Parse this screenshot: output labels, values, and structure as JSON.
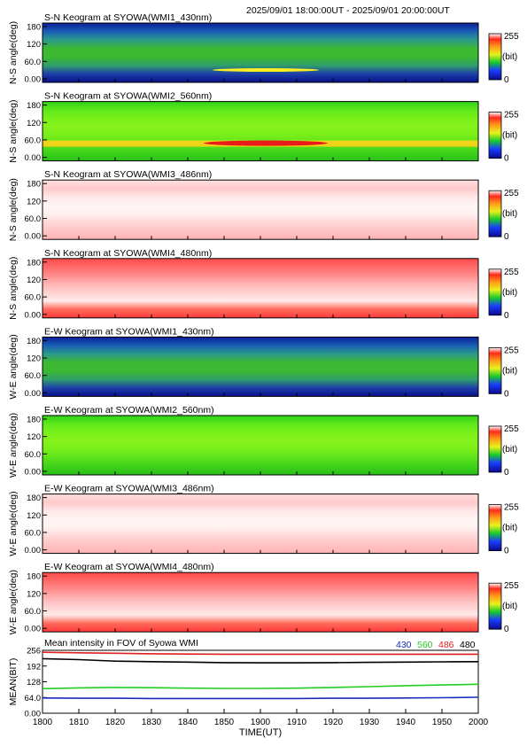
{
  "header": {
    "time_range": "2025/09/01 18:00:00UT - 2025/09/01 20:00:00UT"
  },
  "colorbar": {
    "max_label": "255",
    "unit_label": "(bit)",
    "min_label": "0"
  },
  "gradient_colors": {
    "blue_green": [
      "#0b1f9a",
      "#1a5fb5",
      "#2a9a8a",
      "#3cb832",
      "#3cb832",
      "#2f9f6a",
      "#1e3fa8",
      "#08108a"
    ],
    "green": [
      "#2fd21a",
      "#5fe81a",
      "#7af01a",
      "#86f21a",
      "#78ee1a",
      "#5ae21a",
      "#3fd21a",
      "#28c01a"
    ],
    "pink": [
      "#ffe0e0",
      "#ffcaca",
      "#ffe8e8",
      "#fff4f4",
      "#fff0f0",
      "#ffd6d6",
      "#ffc4c4",
      "#ffb2b2"
    ],
    "red": [
      "#ff4a4a",
      "#ff6a6a",
      "#ff8c8c",
      "#ffb4b4",
      "#ffd0d0",
      "#ffeaea",
      "#ff6a5a",
      "#ff3a3a"
    ]
  },
  "panels": [
    {
      "title": "S-N Keogram at SYOWA(WMI1_430nm)",
      "ylabel": "N-S angle(deg)",
      "y_ticks": [
        "180",
        "120",
        "60.0",
        "0.00"
      ],
      "palette": "blue_green"
    },
    {
      "title": "S-N Keogram at SYOWA(WMI2_560nm)",
      "ylabel": "N-S angle(deg)",
      "y_ticks": [
        "180",
        "120",
        "60.0",
        "0.00"
      ],
      "palette": "green"
    },
    {
      "title": "S-N Keogram at SYOWA(WMI3_486nm)",
      "ylabel": "N-S angle(deg)",
      "y_ticks": [
        "180",
        "120",
        "60.0",
        "0.00"
      ],
      "palette": "pink"
    },
    {
      "title": "S-N Keogram at SYOWA(WMI4_480nm)",
      "ylabel": "N-S angle(deg)",
      "y_ticks": [
        "180",
        "120",
        "60.0",
        "0.00"
      ],
      "palette": "red"
    },
    {
      "title": "E-W Keogram at SYOWA(WMI1_430nm)",
      "ylabel": "W-E angle(deg)",
      "y_ticks": [
        "180",
        "120",
        "60.0",
        "0.00"
      ],
      "palette": "blue_green"
    },
    {
      "title": "E-W Keogram at SYOWA(WMI2_560nm)",
      "ylabel": "W-E angle(deg)",
      "y_ticks": [
        "180",
        "120",
        "60.0",
        "0.00"
      ],
      "palette": "green"
    },
    {
      "title": "E-W Keogram at SYOWA(WMI3_486nm)",
      "ylabel": "W-E angle(deg)",
      "y_ticks": [
        "180",
        "120",
        "60.0",
        "0.00"
      ],
      "palette": "pink"
    },
    {
      "title": "E-W Keogram at SYOWA(WMI4_480nm)",
      "ylabel": "W-E angle(deg)",
      "y_ticks": [
        "180",
        "120",
        "60.0",
        "0.00"
      ],
      "palette": "red"
    }
  ],
  "chart_data": {
    "type": "line",
    "title": "Mean intensity in FOV of Syowa WMI",
    "xlabel": "TIME(UT)",
    "ylabel": "MEAN(BIT)",
    "x_ticks": [
      "1800",
      "1810",
      "1820",
      "1830",
      "1840",
      "1850",
      "1900",
      "1910",
      "1920",
      "1930",
      "1940",
      "1950",
      "2000"
    ],
    "y_ticks": [
      "256",
      "192",
      "128",
      "64.0",
      "0.00"
    ],
    "ylim": [
      0,
      256
    ],
    "x_minutes": [
      0,
      10,
      20,
      30,
      40,
      50,
      60,
      70,
      80,
      90,
      100,
      110,
      120
    ],
    "series": [
      {
        "name": "430",
        "color": "#1a2bc0",
        "values": [
          62,
          61,
          61,
          60,
          60,
          60,
          60,
          60,
          61,
          61,
          62,
          63,
          65
        ]
      },
      {
        "name": "560",
        "color": "#22cc22",
        "values": [
          100,
          103,
          105,
          104,
          102,
          101,
          101,
          102,
          105,
          108,
          112,
          115,
          118
        ]
      },
      {
        "name": "486",
        "color": "#e02020",
        "values": [
          248,
          246,
          244,
          242,
          241,
          240,
          240,
          240,
          240,
          240,
          240,
          240,
          240
        ]
      },
      {
        "name": "480",
        "color": "#000000",
        "values": [
          222,
          218,
          212,
          210,
          208,
          206,
          205,
          205,
          206,
          207,
          208,
          209,
          210
        ]
      }
    ]
  }
}
